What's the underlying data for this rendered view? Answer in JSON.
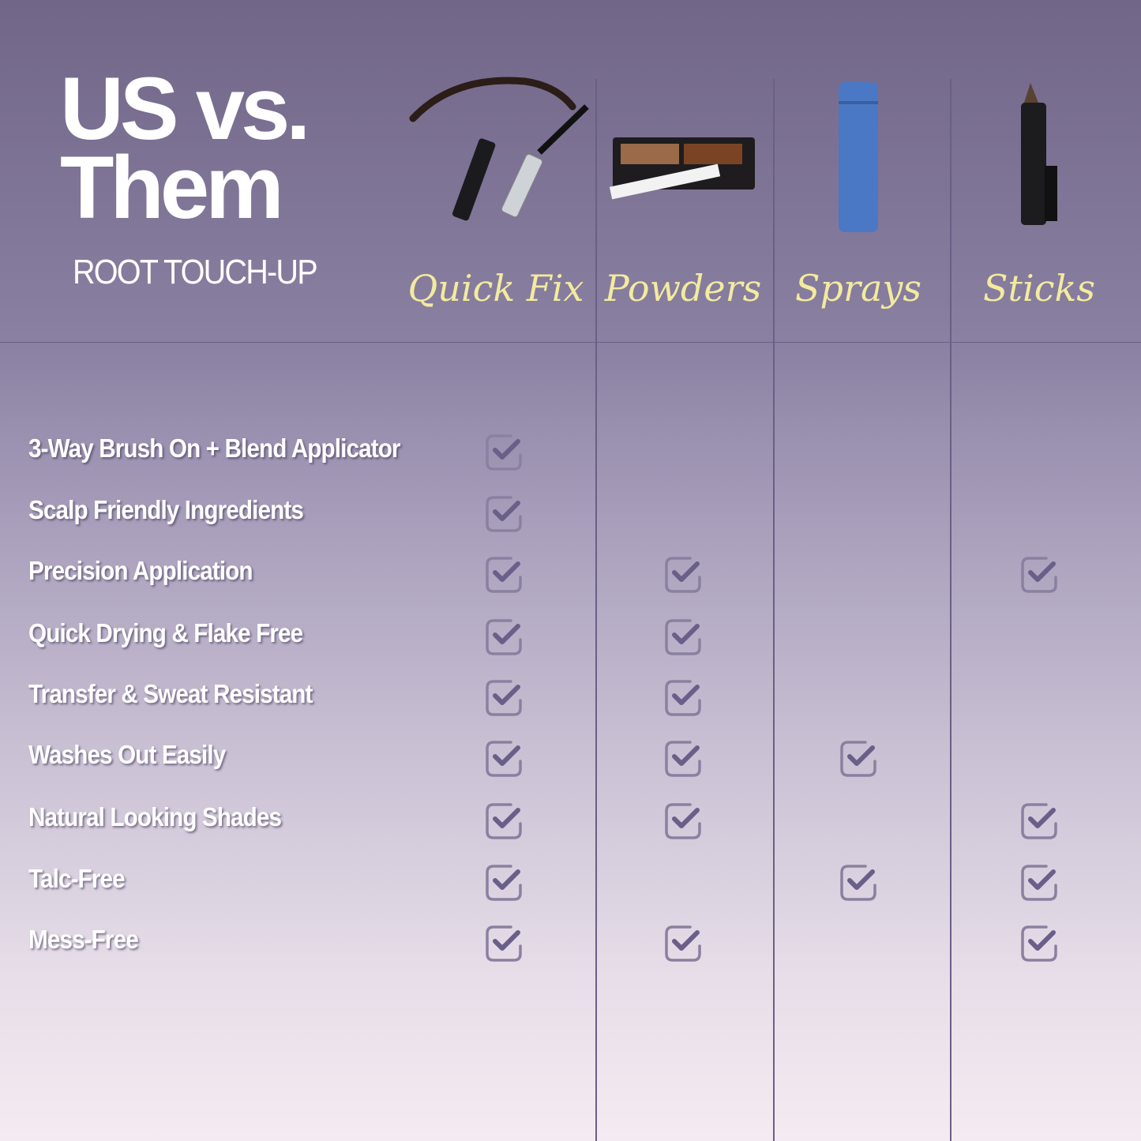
{
  "header": {
    "title_line1": "US vs.",
    "title_line2": "Them",
    "subtitle": "ROOT TOUCH-UP"
  },
  "columns": [
    {
      "label": "Quick Fix",
      "icon": "mascara-applicator-icon"
    },
    {
      "label": "Powders",
      "icon": "powder-compact-icon"
    },
    {
      "label": "Sprays",
      "icon": "spray-can-icon"
    },
    {
      "label": "Sticks",
      "icon": "crayon-stick-icon"
    }
  ],
  "rows": [
    {
      "feature": "3-Way Brush On + Blend Applicator",
      "checks": [
        true,
        false,
        false,
        false
      ]
    },
    {
      "feature": "Scalp Friendly Ingredients",
      "checks": [
        true,
        false,
        false,
        false
      ]
    },
    {
      "feature": "Precision Application",
      "checks": [
        true,
        true,
        false,
        true
      ]
    },
    {
      "feature": "Quick Drying & Flake Free",
      "checks": [
        true,
        true,
        false,
        false
      ]
    },
    {
      "feature": "Transfer & Sweat Resistant",
      "checks": [
        true,
        true,
        false,
        false
      ]
    },
    {
      "feature": "Washes Out Easily",
      "checks": [
        true,
        true,
        true,
        false
      ]
    },
    {
      "feature": "Natural Looking Shades",
      "checks": [
        true,
        true,
        false,
        true
      ]
    },
    {
      "feature": "Talc-Free",
      "checks": [
        true,
        false,
        true,
        true
      ]
    },
    {
      "feature": "Mess-Free",
      "checks": [
        true,
        true,
        false,
        true
      ]
    }
  ],
  "colors": {
    "check": "#6a5f88",
    "checkbox": "#8a80a0",
    "column_label": "#f3eb9e",
    "divider": "#6a5f85"
  }
}
